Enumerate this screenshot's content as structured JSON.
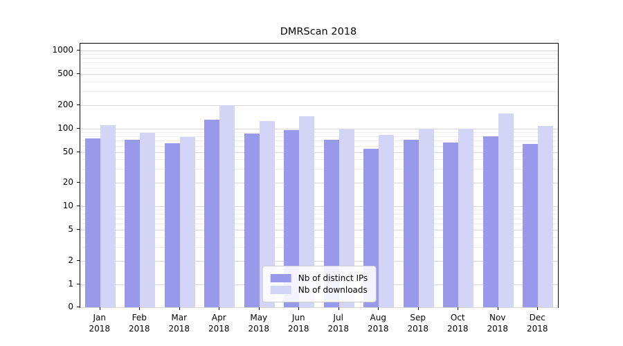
{
  "chart_data": {
    "type": "bar",
    "title": "DMRScan 2018",
    "categories": [
      "Jan",
      "Feb",
      "Mar",
      "Apr",
      "May",
      "Jun",
      "Jul",
      "Aug",
      "Sep",
      "Oct",
      "Nov",
      "Dec"
    ],
    "year_label": "2018",
    "series": [
      {
        "name": "Nb of distinct IPs",
        "color": "#9999ec",
        "values": [
          74,
          72,
          64,
          130,
          86,
          96,
          72,
          55,
          72,
          66,
          80,
          63
        ]
      },
      {
        "name": "Nb of downloads",
        "color": "#d4d4f6",
        "values": [
          110,
          87,
          77,
          197,
          125,
          143,
          98,
          83,
          100,
          100,
          155,
          107
        ]
      }
    ],
    "yscale": "symlog",
    "yticks": [
      0,
      1,
      2,
      5,
      10,
      20,
      50,
      100,
      200,
      500,
      1000
    ],
    "minor_yticks": [
      3,
      4,
      6,
      7,
      8,
      9,
      30,
      40,
      60,
      70,
      80,
      90,
      300,
      400,
      600,
      700,
      800,
      900
    ],
    "ylim": [
      0,
      1250
    ],
    "grid": true,
    "legend_position": "lower center"
  }
}
